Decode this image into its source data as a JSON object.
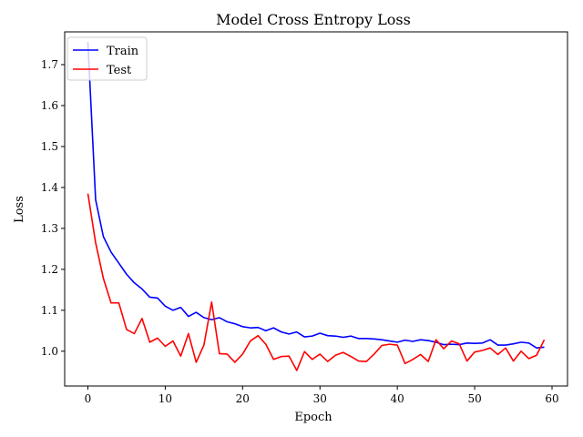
{
  "chart_data": {
    "type": "line",
    "title": "Model Cross Entropy Loss",
    "xlabel": "Epoch",
    "ylabel": "Loss",
    "xlim": [
      -3,
      62
    ],
    "ylim": [
      0.915,
      1.78
    ],
    "xticks": [
      0,
      10,
      20,
      30,
      40,
      50,
      60
    ],
    "yticks": [
      1.0,
      1.1,
      1.2,
      1.3,
      1.4,
      1.5,
      1.6,
      1.7
    ],
    "xtick_labels": [
      "0",
      "10",
      "20",
      "30",
      "40",
      "50",
      "60"
    ],
    "ytick_labels": [
      "1.0",
      "1.1",
      "1.2",
      "1.3",
      "1.4",
      "1.5",
      "1.6",
      "1.7"
    ],
    "grid": false,
    "legend_position": "upper-left",
    "x": [
      0,
      1,
      2,
      3,
      4,
      5,
      6,
      7,
      8,
      9,
      10,
      11,
      12,
      13,
      14,
      15,
      16,
      17,
      18,
      19,
      20,
      21,
      22,
      23,
      24,
      25,
      26,
      27,
      28,
      29,
      30,
      31,
      32,
      33,
      34,
      35,
      36,
      37,
      38,
      39,
      40,
      41,
      42,
      43,
      44,
      45,
      46,
      47,
      48,
      49,
      50,
      51,
      52,
      53,
      54,
      55,
      56,
      57,
      58,
      59
    ],
    "series": [
      {
        "name": "Train",
        "color": "#0000ff",
        "values": [
          1.755,
          1.37,
          1.28,
          1.242,
          1.215,
          1.188,
          1.167,
          1.152,
          1.132,
          1.13,
          1.11,
          1.1,
          1.107,
          1.085,
          1.095,
          1.082,
          1.077,
          1.082,
          1.072,
          1.067,
          1.06,
          1.057,
          1.058,
          1.05,
          1.057,
          1.047,
          1.042,
          1.047,
          1.035,
          1.037,
          1.044,
          1.038,
          1.037,
          1.034,
          1.037,
          1.031,
          1.031,
          1.03,
          1.028,
          1.025,
          1.022,
          1.027,
          1.024,
          1.028,
          1.026,
          1.022,
          1.016,
          1.017,
          1.016,
          1.02,
          1.019,
          1.02,
          1.028,
          1.015,
          1.015,
          1.018,
          1.022,
          1.02,
          1.008,
          1.01
        ]
      },
      {
        "name": "Test",
        "color": "#ff0000",
        "values": [
          1.385,
          1.265,
          1.178,
          1.118,
          1.118,
          1.053,
          1.043,
          1.08,
          1.022,
          1.032,
          1.012,
          1.025,
          0.988,
          1.043,
          0.973,
          1.015,
          1.12,
          0.994,
          0.993,
          0.973,
          0.993,
          1.025,
          1.038,
          1.017,
          0.98,
          0.987,
          0.988,
          0.953,
          0.999,
          0.98,
          0.993,
          0.975,
          0.99,
          0.997,
          0.987,
          0.976,
          0.975,
          0.993,
          1.014,
          1.017,
          1.015,
          0.97,
          0.98,
          0.992,
          0.975,
          1.028,
          1.006,
          1.025,
          1.018,
          0.976,
          0.998,
          1.002,
          1.008,
          0.992,
          1.008,
          0.976,
          1.0,
          0.982,
          0.99,
          1.028
        ]
      }
    ]
  }
}
